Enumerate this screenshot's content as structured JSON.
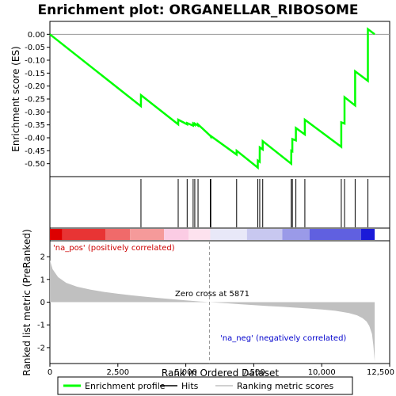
{
  "chart_data": {
    "type": "line",
    "title": "Enrichment plot: ORGANELLAR_RIBOSOME",
    "xlabel": "Rank in Ordered Dataset",
    "ylabel_top": "Enrichment score (ES)",
    "ylabel_bottom": "Ranked list metric (PreRanked)",
    "xlim": [
      0,
      12500
    ],
    "x_ticks": [
      0,
      2500,
      5000,
      7500,
      10000,
      12500
    ],
    "x_tick_labels": [
      "0",
      "2,500",
      "5,000",
      "7,500",
      "10,000",
      "12,500"
    ],
    "es_ylim": [
      -0.55,
      0.05
    ],
    "es_ticks": [
      0.0,
      -0.05,
      -0.1,
      -0.15,
      -0.2,
      -0.25,
      -0.3,
      -0.35,
      -0.4,
      -0.45,
      -0.5
    ],
    "es_tick_labels": [
      "0.00",
      "-0.05",
      "-0.10",
      "-0.15",
      "-0.20",
      "-0.25",
      "-0.30",
      "-0.35",
      "-0.40",
      "-0.45",
      "-0.50"
    ],
    "metric_ylim": [
      -2.7,
      2.7
    ],
    "metric_ticks": [
      2,
      1,
      0,
      -1,
      -2
    ],
    "metric_tick_labels": [
      "2",
      "1",
      "0",
      "-1",
      "-2"
    ],
    "n_genes": 11950,
    "zero_cross": 5871,
    "zero_cross_label": "Zero cross at 5871",
    "pos_label": "'na_pos' (positively correlated)",
    "neg_label": "'na_neg' (negatively correlated)",
    "hits": [
      3350,
      4720,
      5050,
      5270,
      5330,
      5450,
      5900,
      5920,
      6870,
      7650,
      7720,
      7830,
      8880,
      8920,
      9050,
      9380,
      10720,
      10840,
      11230,
      11700
    ],
    "es_curve": {
      "x": [
        0,
        3349,
        3350,
        4719,
        4720,
        5049,
        5050,
        5269,
        5270,
        5329,
        5330,
        5449,
        5450,
        5899,
        5900,
        5919,
        5920,
        6869,
        6870,
        7649,
        7650,
        7719,
        7720,
        7829,
        7830,
        8879,
        8880,
        8919,
        8920,
        9049,
        9050,
        9379,
        9380,
        10719,
        10720,
        10839,
        10840,
        11229,
        11230,
        11699,
        11700,
        11950
      ],
      "y": [
        0.0,
        -0.278,
        -0.235,
        -0.348,
        -0.33,
        -0.348,
        -0.343,
        -0.353,
        -0.345,
        -0.35,
        -0.345,
        -0.353,
        -0.348,
        -0.392,
        -0.392,
        -0.395,
        -0.393,
        -0.465,
        -0.45,
        -0.515,
        -0.488,
        -0.493,
        -0.437,
        -0.445,
        -0.413,
        -0.5,
        -0.45,
        -0.452,
        -0.405,
        -0.41,
        -0.362,
        -0.387,
        -0.33,
        -0.435,
        -0.34,
        -0.345,
        -0.243,
        -0.275,
        -0.143,
        -0.18,
        0.02,
        0.0
      ]
    },
    "metric_curve": {
      "x": [
        0,
        100,
        300,
        600,
        1000,
        1500,
        2000,
        2500,
        3000,
        3500,
        4000,
        4500,
        5000,
        5500,
        5871,
        6500,
        7000,
        7500,
        8000,
        8500,
        9000,
        9500,
        10000,
        10500,
        11000,
        11300,
        11500,
        11650,
        11750,
        11850,
        11900,
        11950
      ],
      "y": [
        1.85,
        1.45,
        1.1,
        0.85,
        0.68,
        0.55,
        0.45,
        0.37,
        0.3,
        0.24,
        0.18,
        0.13,
        0.08,
        0.03,
        0.0,
        -0.05,
        -0.09,
        -0.13,
        -0.17,
        -0.2,
        -0.24,
        -0.28,
        -0.32,
        -0.38,
        -0.48,
        -0.58,
        -0.7,
        -0.85,
        -1.05,
        -1.4,
        -1.9,
        -2.6
      ]
    },
    "heat_colors": [
      "#dd0000",
      "#e83434",
      "#f06a6a",
      "#f59a9a",
      "#fbcce4",
      "#fde2ee",
      "#e8e8f8",
      "#c8c8f0",
      "#9a9ae8",
      "#6060e0",
      "#1a1ad8"
    ],
    "heat_bounds": [
      0,
      450,
      2050,
      2950,
      4200,
      5100,
      5900,
      7250,
      8550,
      9550,
      11450,
      11950
    ],
    "colors": {
      "es_line": "#00ff00",
      "hits": "#000000",
      "metric_fill": "#c0c0c0",
      "zero_line": "#999999"
    },
    "legend": [
      {
        "label": "Enrichment profile",
        "color": "#00ff00"
      },
      {
        "label": "Hits",
        "color": "#000000"
      },
      {
        "label": "Ranking metric scores",
        "color": "#c0c0c0"
      }
    ]
  }
}
